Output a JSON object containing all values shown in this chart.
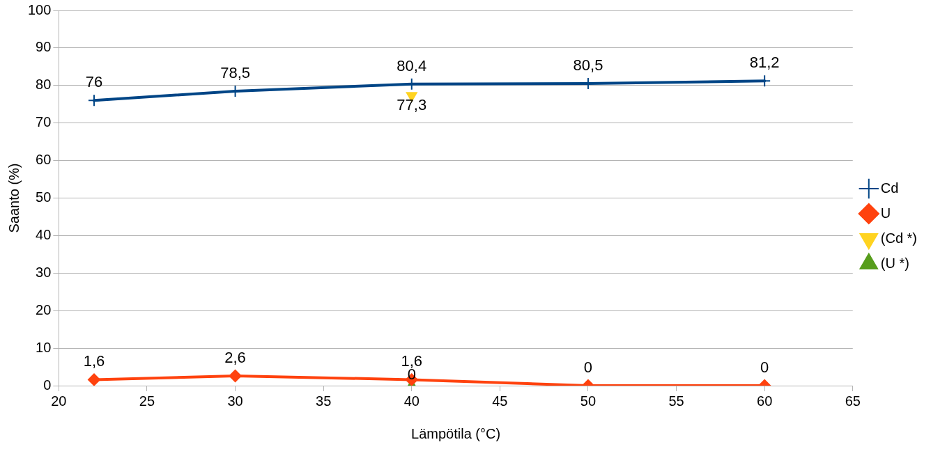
{
  "chart_data": {
    "type": "line",
    "xlabel": "Lämpötila (°C)",
    "ylabel": "Saanto (%)",
    "xlim": [
      20,
      65
    ],
    "xticks": [
      20,
      25,
      30,
      35,
      40,
      45,
      50,
      55,
      60,
      65
    ],
    "ylim": [
      0,
      100
    ],
    "yticks": [
      0,
      10,
      20,
      30,
      40,
      50,
      60,
      70,
      80,
      90,
      100
    ],
    "grid": "y",
    "legend": "right",
    "series": [
      {
        "name": "Cd",
        "color": "#004586",
        "marker": "cross",
        "x": [
          22,
          30,
          40,
          50,
          60
        ],
        "values": [
          76,
          78.5,
          80.4,
          80.5,
          81.2
        ],
        "value_labels": [
          "76",
          "78,5",
          "80,4",
          "80,5",
          "81,2"
        ]
      },
      {
        "name": "U",
        "color": "#ff420e",
        "marker": "diamond",
        "x": [
          22,
          30,
          40,
          50,
          60
        ],
        "values": [
          1.6,
          2.6,
          1.6,
          0,
          0
        ],
        "value_labels": [
          "1,6",
          "2,6",
          "1,6",
          "0",
          "0"
        ]
      },
      {
        "name": "(Cd *)",
        "color": "#ffd320",
        "marker": "triangle-down",
        "x": [
          40
        ],
        "values": [
          77.3
        ],
        "value_labels": [
          "77,3"
        ]
      },
      {
        "name": "(U *)",
        "color": "#579d1c",
        "marker": "triangle",
        "x": [
          40
        ],
        "values": [
          0
        ],
        "value_labels": [
          "0"
        ]
      }
    ]
  }
}
